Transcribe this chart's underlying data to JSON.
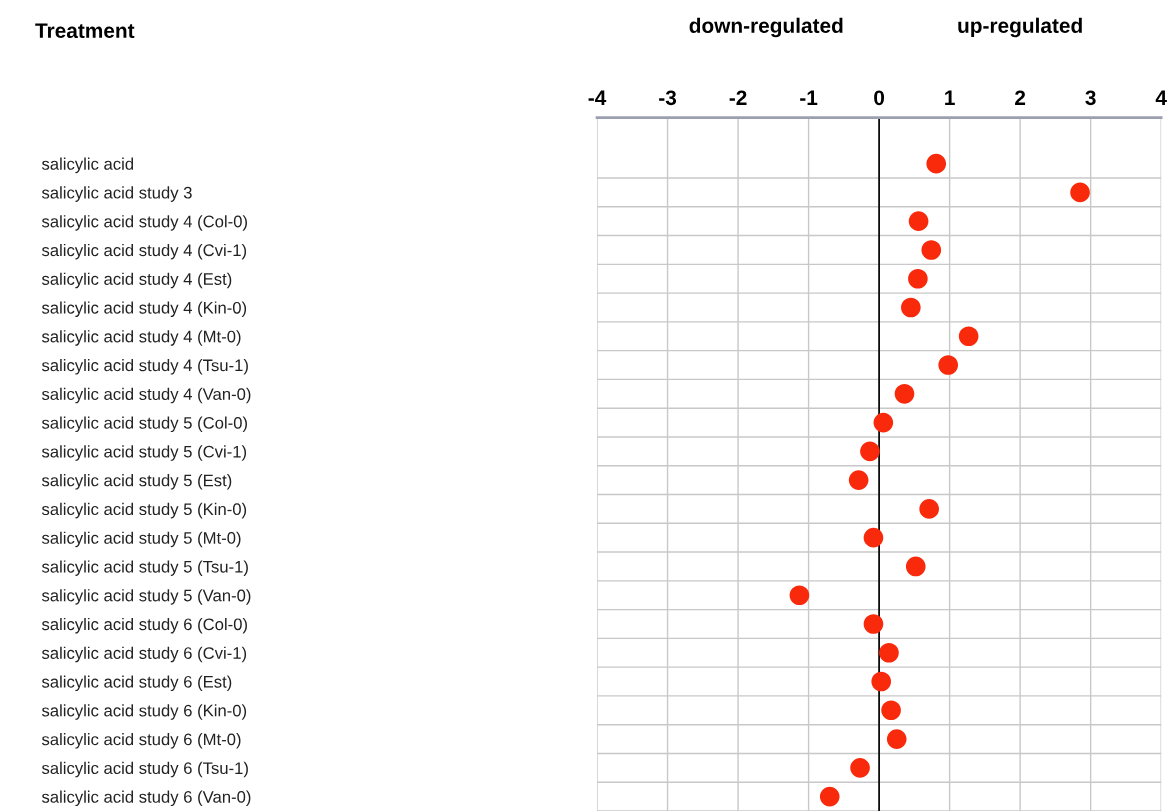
{
  "chart_data": {
    "type": "scatter",
    "title": "Treatment",
    "categories": [
      "salicylic acid",
      "salicylic acid study 3",
      "salicylic acid study 4 (Col-0)",
      "salicylic acid study 4 (Cvi-1)",
      "salicylic acid study 4 (Est)",
      "salicylic acid study 4 (Kin-0)",
      "salicylic acid study 4 (Mt-0)",
      "salicylic acid study 4 (Tsu-1)",
      "salicylic acid study 4 (Van-0)",
      "salicylic acid study 5 (Col-0)",
      "salicylic acid study 5 (Cvi-1)",
      "salicylic acid study 5 (Est)",
      "salicylic acid study 5 (Kin-0)",
      "salicylic acid study 5 (Mt-0)",
      "salicylic acid study 5 (Tsu-1)",
      "salicylic acid study 5 (Van-0)",
      "salicylic acid study 6 (Col-0)",
      "salicylic acid study 6 (Cvi-1)",
      "salicylic acid study 6 (Est)",
      "salicylic acid study 6 (Kin-0)",
      "salicylic acid study 6 (Mt-0)",
      "salicylic acid study 6 (Tsu-1)",
      "salicylic acid study 6 (Van-0)"
    ],
    "orientation": "horizontal",
    "series": [
      {
        "axis": "x2",
        "color": "#f92a0c",
        "values": [
          0.81,
          2.85,
          0.56,
          0.74,
          0.55,
          0.45,
          1.27,
          0.98,
          0.36,
          0.06,
          -0.13,
          -0.29,
          0.71,
          -0.08,
          0.52,
          -1.13,
          -0.08,
          0.14,
          0.03,
          0.17,
          0.25,
          -0.27,
          -0.7
        ]
      }
    ],
    "x2lim": [
      -4,
      4
    ],
    "x2ticks": [
      -4,
      -3,
      -2,
      -1,
      0,
      1,
      2,
      3,
      4
    ],
    "annotations": [
      "down-regulated",
      "up-regulated"
    ],
    "ref_lines": [
      {
        "axis": "x2",
        "value": 0,
        "color": "#000000"
      }
    ],
    "grid": true,
    "marker": "circle"
  }
}
